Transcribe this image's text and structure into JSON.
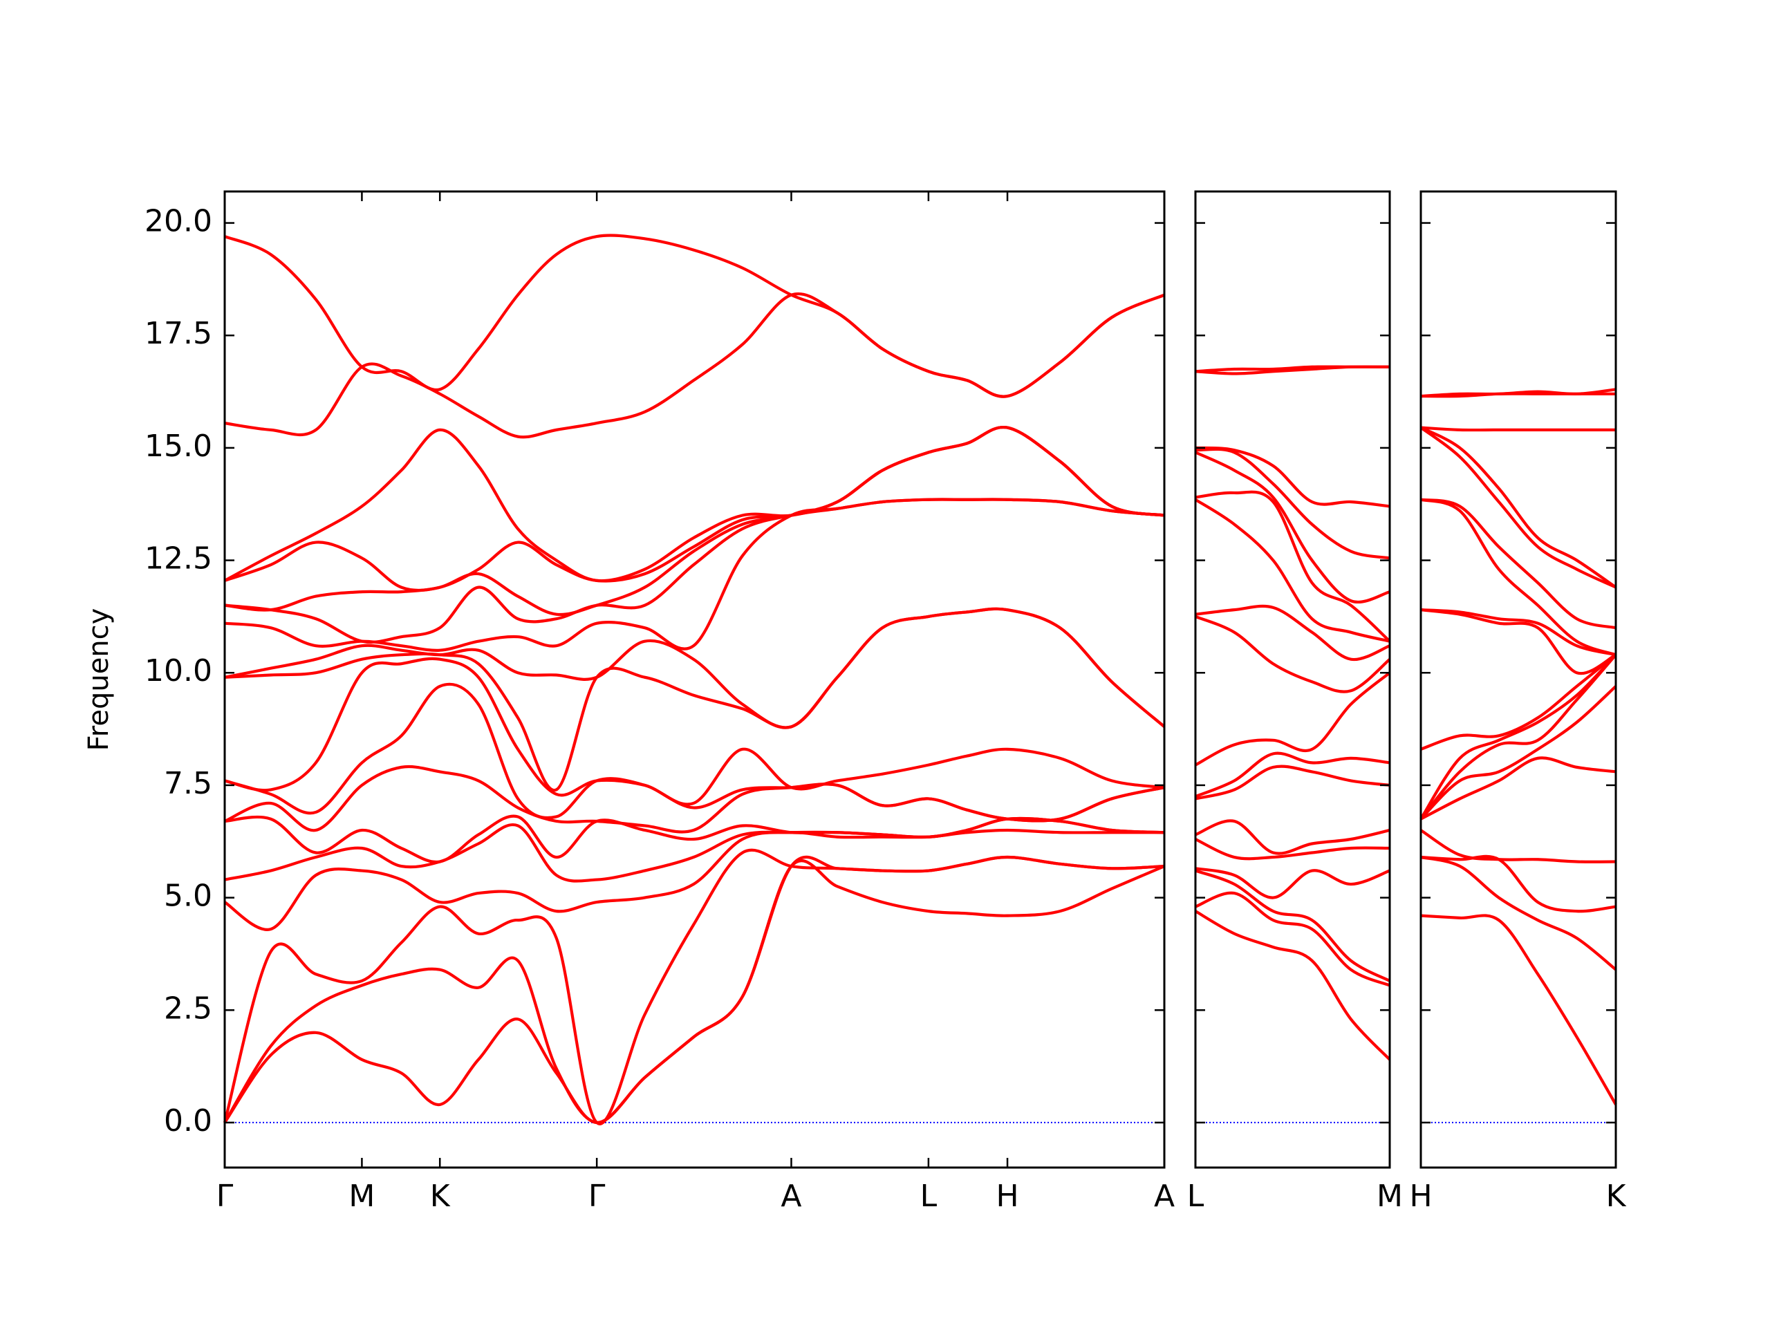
{
  "chart_data": [
    {
      "type": "line",
      "ylabel": "Frequency",
      "color": "#ff0000",
      "ylim": [
        -1,
        20.7
      ],
      "yticks": [
        {
          "value": 0,
          "label": "0.0"
        },
        2.5,
        {
          "value": 5,
          "label": "5.0"
        },
        7.5,
        {
          "value": 10,
          "label": "10.0"
        },
        12.5,
        {
          "value": 15,
          "label": "15.0"
        },
        17.5,
        {
          "value": 20,
          "label": "20.0"
        }
      ],
      "xlim": [
        0,
        1
      ],
      "xticks": [
        {
          "value": 0,
          "label": "Γ"
        },
        {
          "value": 0.146,
          "label": "M"
        },
        {
          "value": 0.229,
          "label": "K"
        },
        {
          "value": 0.396,
          "label": "Γ"
        },
        {
          "value": 0.603,
          "label": "A"
        },
        {
          "value": 0.749,
          "label": "L"
        },
        {
          "value": 0.833,
          "label": "H"
        },
        {
          "value": 1,
          "label": "A"
        }
      ],
      "hline": 0,
      "hline_color": "#0000ff",
      "x": [
        0,
        0.049,
        0.097,
        0.146,
        0.188,
        0.229,
        0.27,
        0.312,
        0.353,
        0.396,
        0.447,
        0.499,
        0.551,
        0.603,
        0.652,
        0.7,
        0.749,
        0.79,
        0.833,
        0.889,
        0.944,
        1
      ],
      "series": [
        {
          "values": [
            0,
            1.5,
            2.0,
            1.4,
            1.1,
            0.4,
            1.4,
            2.3,
            1.1,
            0,
            1.0,
            1.9,
            2.8,
            5.7,
            5.25,
            4.9,
            4.7,
            4.65,
            4.6,
            4.7,
            5.2,
            5.7
          ]
        },
        {
          "values": [
            0,
            1.7,
            2.6,
            3.05,
            3.3,
            3.4,
            3.0,
            3.6,
            1.2,
            0,
            1.0,
            1.9,
            2.8,
            5.7,
            5.65,
            5.6,
            5.6,
            5.75,
            5.9,
            5.75,
            5.65,
            5.7
          ]
        },
        {
          "values": [
            0,
            3.8,
            3.3,
            3.15,
            4.0,
            4.8,
            4.2,
            4.5,
            4.1,
            0,
            2.4,
            4.4,
            6.0,
            5.7,
            5.65,
            5.6,
            5.6,
            5.75,
            5.9,
            5.75,
            5.65,
            5.7
          ]
        },
        {
          "values": [
            4.9,
            4.3,
            5.5,
            5.6,
            5.4,
            4.9,
            5.1,
            5.1,
            4.7,
            4.9,
            5.0,
            5.3,
            6.3,
            6.45,
            6.35,
            6.35,
            6.35,
            6.45,
            6.5,
            6.45,
            6.45,
            6.45
          ]
        },
        {
          "values": [
            5.4,
            5.6,
            5.9,
            6.1,
            5.7,
            5.8,
            6.2,
            6.6,
            5.5,
            5.4,
            5.6,
            5.9,
            6.4,
            6.45,
            6.45,
            6.4,
            6.35,
            6.5,
            6.75,
            6.7,
            6.5,
            6.45
          ]
        },
        {
          "values": [
            6.7,
            6.75,
            6.0,
            6.5,
            6.1,
            5.8,
            6.4,
            6.8,
            5.9,
            6.7,
            6.5,
            6.3,
            6.6,
            6.45,
            6.45,
            6.4,
            6.35,
            6.5,
            6.75,
            6.7,
            6.5,
            6.45
          ]
        },
        {
          "values": [
            6.7,
            7.1,
            6.5,
            7.5,
            7.9,
            7.8,
            7.6,
            7.0,
            6.7,
            6.7,
            6.6,
            6.5,
            7.3,
            7.45,
            7.5,
            7.05,
            7.2,
            6.95,
            6.75,
            6.75,
            7.2,
            7.45
          ]
        },
        {
          "values": [
            7.6,
            7.3,
            6.9,
            8.0,
            8.6,
            9.7,
            9.3,
            7.2,
            6.8,
            7.6,
            7.5,
            7.0,
            7.4,
            7.45,
            7.5,
            7.05,
            7.2,
            6.95,
            6.75,
            6.75,
            7.2,
            7.45
          ]
        },
        {
          "values": [
            7.6,
            7.4,
            8.0,
            10.0,
            10.2,
            10.3,
            9.9,
            8.3,
            7.3,
            7.6,
            7.5,
            7.1,
            8.3,
            7.45,
            7.6,
            7.75,
            7.95,
            8.15,
            8.3,
            8.1,
            7.6,
            7.45
          ]
        },
        {
          "values": [
            9.9,
            9.95,
            10.0,
            10.3,
            10.4,
            10.4,
            10.2,
            9.0,
            7.4,
            9.9,
            9.9,
            9.5,
            9.2,
            8.8,
            9.9,
            11.0,
            11.25,
            11.35,
            11.4,
            11.0,
            9.8,
            8.8
          ]
        },
        {
          "values": [
            9.9,
            10.1,
            10.3,
            10.6,
            10.5,
            10.4,
            10.5,
            10.0,
            9.95,
            9.9,
            10.7,
            10.3,
            9.3,
            8.8,
            9.9,
            11.0,
            11.25,
            11.35,
            11.4,
            11.0,
            9.8,
            8.8
          ]
        },
        {
          "values": [
            11.1,
            11.0,
            10.6,
            10.7,
            10.6,
            10.5,
            10.7,
            10.8,
            10.6,
            11.1,
            11.0,
            10.6,
            12.6,
            13.5,
            13.65,
            13.8,
            13.85,
            13.85,
            13.85,
            13.8,
            13.6,
            13.5
          ]
        },
        {
          "values": [
            11.5,
            11.4,
            11.2,
            10.7,
            10.8,
            11.0,
            11.9,
            11.2,
            11.2,
            11.5,
            11.5,
            12.4,
            13.2,
            13.5,
            13.65,
            13.8,
            13.85,
            13.85,
            13.85,
            13.8,
            13.6,
            13.5
          ]
        },
        {
          "values": [
            11.5,
            11.4,
            11.7,
            11.8,
            11.8,
            11.9,
            12.2,
            11.7,
            11.3,
            11.5,
            11.9,
            12.7,
            13.3,
            13.5,
            13.8,
            14.5,
            14.9,
            15.1,
            15.45,
            14.7,
            13.7,
            13.5
          ]
        },
        {
          "values": [
            12.05,
            12.4,
            12.9,
            12.55,
            11.9,
            11.9,
            12.3,
            12.9,
            12.4,
            12.05,
            12.2,
            12.8,
            13.4,
            13.5,
            13.8,
            14.5,
            14.9,
            15.1,
            15.45,
            14.7,
            13.7,
            13.5
          ]
        },
        {
          "values": [
            12.05,
            12.6,
            13.1,
            13.7,
            14.5,
            15.4,
            14.6,
            13.2,
            12.5,
            12.05,
            12.3,
            13.0,
            13.5,
            13.5,
            13.8,
            14.5,
            14.9,
            15.1,
            15.45,
            14.7,
            13.7,
            13.5
          ]
        },
        {
          "values": [
            15.55,
            15.4,
            15.4,
            16.8,
            16.6,
            16.2,
            15.7,
            15.25,
            15.4,
            15.55,
            15.8,
            16.5,
            17.3,
            18.4,
            18.0,
            17.2,
            16.7,
            16.5,
            16.15,
            16.9,
            17.9,
            18.4
          ]
        },
        {
          "values": [
            19.7,
            19.3,
            18.3,
            16.8,
            16.7,
            16.3,
            17.2,
            18.4,
            19.3,
            19.7,
            19.65,
            19.4,
            19.0,
            18.4,
            18.0,
            17.2,
            16.7,
            16.5,
            16.15,
            16.9,
            17.9,
            18.4
          ]
        }
      ]
    },
    {
      "type": "line",
      "color": "#ff0000",
      "ylim": [
        -1,
        20.7
      ],
      "yticks": [
        0,
        2.5,
        5,
        7.5,
        10,
        12.5,
        15,
        17.5,
        20
      ],
      "ytick_labels": false,
      "xlim": [
        0,
        1
      ],
      "xticks": [
        {
          "value": 0,
          "label": "L"
        },
        {
          "value": 1,
          "label": "M"
        }
      ],
      "hline": 0,
      "hline_color": "#0000ff",
      "x": [
        0,
        0.2,
        0.4,
        0.6,
        0.8,
        1
      ],
      "series": [
        {
          "values": [
            4.7,
            4.2,
            3.9,
            3.6,
            2.3,
            1.4
          ]
        },
        {
          "values": [
            4.8,
            5.1,
            4.5,
            4.3,
            3.4,
            3.05
          ]
        },
        {
          "values": [
            5.6,
            5.3,
            4.7,
            4.5,
            3.6,
            3.15
          ]
        },
        {
          "values": [
            5.65,
            5.5,
            5.0,
            5.6,
            5.3,
            5.6
          ]
        },
        {
          "values": [
            6.3,
            5.9,
            5.9,
            6.0,
            6.1,
            6.1
          ]
        },
        {
          "values": [
            6.4,
            6.7,
            6.0,
            6.2,
            6.3,
            6.5
          ]
        },
        {
          "values": [
            7.2,
            7.4,
            7.9,
            7.8,
            7.6,
            7.5
          ]
        },
        {
          "values": [
            7.25,
            7.6,
            8.2,
            8.0,
            8.1,
            8.0
          ]
        },
        {
          "values": [
            7.95,
            8.4,
            8.5,
            8.3,
            9.3,
            10.0
          ]
        },
        {
          "values": [
            11.25,
            10.9,
            10.2,
            9.8,
            9.6,
            10.3
          ]
        },
        {
          "values": [
            11.3,
            11.4,
            11.45,
            10.9,
            10.3,
            10.6
          ]
        },
        {
          "values": [
            13.85,
            13.3,
            12.5,
            11.2,
            10.9,
            10.7
          ]
        },
        {
          "values": [
            13.9,
            14.0,
            13.8,
            12.0,
            11.5,
            10.7
          ]
        },
        {
          "values": [
            14.9,
            14.5,
            13.9,
            12.5,
            11.6,
            11.8
          ]
        },
        {
          "values": [
            14.95,
            14.9,
            14.2,
            13.3,
            12.7,
            12.55
          ]
        },
        {
          "values": [
            15.0,
            14.95,
            14.6,
            13.8,
            13.8,
            13.7
          ]
        },
        {
          "values": [
            16.7,
            16.65,
            16.7,
            16.75,
            16.8,
            16.8
          ]
        },
        {
          "values": [
            16.7,
            16.75,
            16.75,
            16.8,
            16.8,
            16.8
          ]
        }
      ]
    },
    {
      "type": "line",
      "color": "#ff0000",
      "ylim": [
        -1,
        20.7
      ],
      "yticks": [
        0,
        2.5,
        5,
        7.5,
        10,
        12.5,
        15,
        17.5,
        20
      ],
      "ytick_labels": false,
      "xlim": [
        0,
        1
      ],
      "xticks": [
        {
          "value": 0,
          "label": "H"
        },
        {
          "value": 1,
          "label": "K"
        }
      ],
      "hline": 0,
      "hline_color": "#0000ff",
      "x": [
        0,
        0.2,
        0.4,
        0.6,
        0.8,
        1
      ],
      "series": [
        {
          "values": [
            4.6,
            4.55,
            4.5,
            3.3,
            1.9,
            0.4
          ]
        },
        {
          "values": [
            5.9,
            5.7,
            5.0,
            4.5,
            4.1,
            3.4
          ]
        },
        {
          "values": [
            5.9,
            5.85,
            5.85,
            4.9,
            4.7,
            4.8
          ]
        },
        {
          "values": [
            6.5,
            5.95,
            5.85,
            5.85,
            5.8,
            5.8
          ]
        },
        {
          "values": [
            6.75,
            7.2,
            7.6,
            8.1,
            7.9,
            7.8
          ]
        },
        {
          "values": [
            6.75,
            7.6,
            7.8,
            8.3,
            8.9,
            9.7
          ]
        },
        {
          "values": [
            6.75,
            7.8,
            8.4,
            8.5,
            9.4,
            10.4
          ]
        },
        {
          "values": [
            6.75,
            8.1,
            8.5,
            8.9,
            9.5,
            10.4
          ]
        },
        {
          "values": [
            8.3,
            8.6,
            8.6,
            9.0,
            9.7,
            10.4
          ]
        },
        {
          "values": [
            11.4,
            11.3,
            11.1,
            11.0,
            10.0,
            10.4
          ]
        },
        {
          "values": [
            11.4,
            11.35,
            11.2,
            11.1,
            10.6,
            10.4
          ]
        },
        {
          "values": [
            13.85,
            13.6,
            12.3,
            11.5,
            10.7,
            10.4
          ]
        },
        {
          "values": [
            13.85,
            13.7,
            12.8,
            12.0,
            11.2,
            11.0
          ]
        },
        {
          "values": [
            15.45,
            14.8,
            13.8,
            12.8,
            12.3,
            11.9
          ]
        },
        {
          "values": [
            15.45,
            15.0,
            14.1,
            13.0,
            12.5,
            11.9
          ]
        },
        {
          "values": [
            15.45,
            15.4,
            15.4,
            15.4,
            15.4,
            15.4
          ]
        },
        {
          "values": [
            16.15,
            16.15,
            16.2,
            16.2,
            16.2,
            16.2
          ]
        },
        {
          "values": [
            16.15,
            16.2,
            16.2,
            16.25,
            16.2,
            16.3
          ]
        }
      ]
    }
  ]
}
